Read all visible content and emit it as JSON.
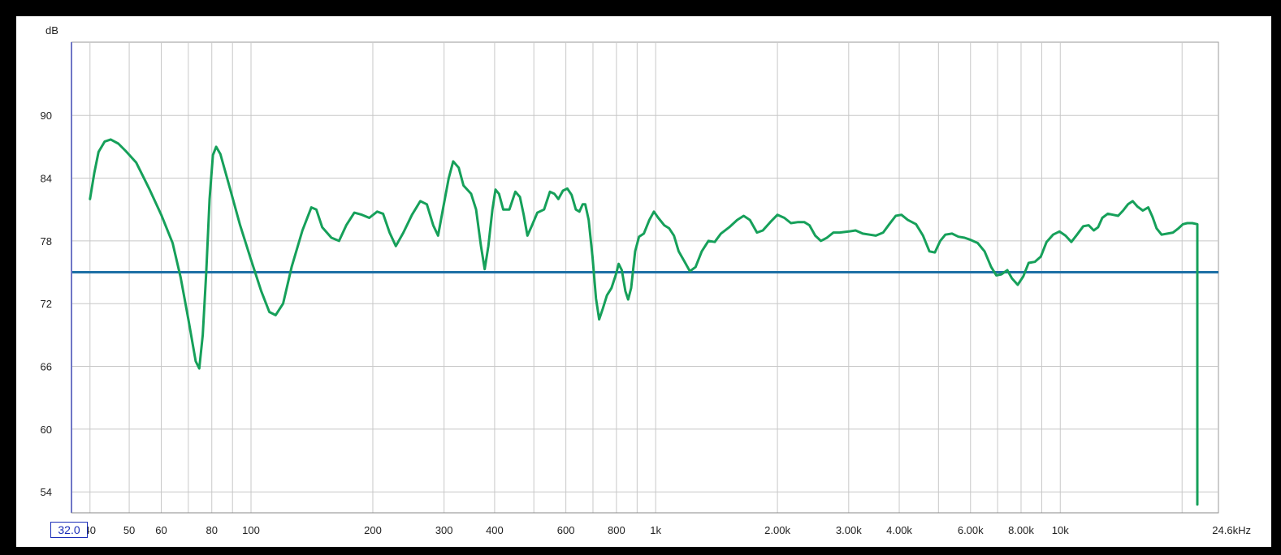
{
  "colors": {
    "response_curve": "#16a05a",
    "reference_line": "#1d6fa5",
    "left_axis": "#6f76c6",
    "grid": "#c8c8c8",
    "start_box_border": "#1a2db8"
  },
  "start_frequency_field": {
    "value": "32.0"
  },
  "chart_data": {
    "type": "line",
    "title": "",
    "xscale": "log",
    "xlim": [
      36,
      24600
    ],
    "ylim": [
      52,
      97
    ],
    "ylabel": "dB",
    "xunit": "kHz",
    "grid": true,
    "y_ticks": [
      {
        "value": 54,
        "label": "54"
      },
      {
        "value": 60,
        "label": "60"
      },
      {
        "value": 66,
        "label": "66"
      },
      {
        "value": 72,
        "label": "72"
      },
      {
        "value": 78,
        "label": "78"
      },
      {
        "value": 84,
        "label": "84"
      },
      {
        "value": 90,
        "label": "90"
      }
    ],
    "x_ticks": [
      {
        "value": 40,
        "label": "40"
      },
      {
        "value": 50,
        "label": "50"
      },
      {
        "value": 60,
        "label": "60"
      },
      {
        "value": 80,
        "label": "80"
      },
      {
        "value": 100,
        "label": "100"
      },
      {
        "value": 200,
        "label": "200"
      },
      {
        "value": 300,
        "label": "300"
      },
      {
        "value": 400,
        "label": "400"
      },
      {
        "value": 600,
        "label": "600"
      },
      {
        "value": 800,
        "label": "800"
      },
      {
        "value": 1000,
        "label": "1k"
      },
      {
        "value": 2000,
        "label": "2.00k"
      },
      {
        "value": 3000,
        "label": "3.00k"
      },
      {
        "value": 4000,
        "label": "4.00k"
      },
      {
        "value": 6000,
        "label": "6.00k"
      },
      {
        "value": 8000,
        "label": "8.00k"
      },
      {
        "value": 10000,
        "label": "10k"
      },
      {
        "value": 24600,
        "label": "24.6kHz"
      }
    ],
    "x_minor_grid": [
      70,
      90,
      500,
      700,
      900,
      5000,
      7000,
      9000,
      20000
    ],
    "reference_level": 75,
    "series": [
      {
        "points": [
          [
            40,
            82
          ],
          [
            41,
            84.5
          ],
          [
            42,
            86.5
          ],
          [
            43.5,
            87.5
          ],
          [
            45,
            87.7
          ],
          [
            47,
            87.3
          ],
          [
            49,
            86.6
          ],
          [
            52,
            85.5
          ],
          [
            56,
            83.0
          ],
          [
            60,
            80.5
          ],
          [
            64,
            77.8
          ],
          [
            67,
            74.5
          ],
          [
            70,
            70.5
          ],
          [
            73,
            66.5
          ],
          [
            74.5,
            65.8
          ],
          [
            76,
            69
          ],
          [
            77.5,
            75
          ],
          [
            79,
            82
          ],
          [
            80.5,
            86.2
          ],
          [
            82,
            87.0
          ],
          [
            84,
            86.3
          ],
          [
            88,
            83.5
          ],
          [
            94,
            79.5
          ],
          [
            100,
            76.2
          ],
          [
            106,
            73.2
          ],
          [
            111,
            71.2
          ],
          [
            115,
            70.9
          ],
          [
            120,
            72.0
          ],
          [
            126,
            75.5
          ],
          [
            134,
            79.0
          ],
          [
            141,
            81.2
          ],
          [
            145,
            81.0
          ],
          [
            150,
            79.3
          ],
          [
            158,
            78.3
          ],
          [
            165,
            78.0
          ],
          [
            172,
            79.5
          ],
          [
            180,
            80.7
          ],
          [
            188,
            80.5
          ],
          [
            196,
            80.2
          ],
          [
            205,
            80.8
          ],
          [
            212,
            80.6
          ],
          [
            220,
            78.8
          ],
          [
            228,
            77.5
          ],
          [
            238,
            78.8
          ],
          [
            250,
            80.5
          ],
          [
            262,
            81.8
          ],
          [
            272,
            81.5
          ],
          [
            282,
            79.5
          ],
          [
            290,
            78.5
          ],
          [
            298,
            81.0
          ],
          [
            308,
            84.0
          ],
          [
            316,
            85.6
          ],
          [
            326,
            85.0
          ],
          [
            335,
            83.3
          ],
          [
            350,
            82.5
          ],
          [
            360,
            81.0
          ],
          [
            370,
            77.5
          ],
          [
            378,
            75.3
          ],
          [
            386,
            77.5
          ],
          [
            395,
            81.0
          ],
          [
            402,
            82.9
          ],
          [
            410,
            82.5
          ],
          [
            420,
            81.0
          ],
          [
            435,
            81.0
          ],
          [
            450,
            82.7
          ],
          [
            462,
            82.2
          ],
          [
            472,
            80.5
          ],
          [
            482,
            78.5
          ],
          [
            495,
            79.5
          ],
          [
            510,
            80.7
          ],
          [
            530,
            81.0
          ],
          [
            548,
            82.7
          ],
          [
            562,
            82.5
          ],
          [
            575,
            82.0
          ],
          [
            590,
            82.8
          ],
          [
            605,
            83.0
          ],
          [
            620,
            82.4
          ],
          [
            635,
            81.0
          ],
          [
            648,
            80.8
          ],
          [
            660,
            81.5
          ],
          [
            670,
            81.5
          ],
          [
            683,
            80.0
          ],
          [
            698,
            76.5
          ],
          [
            712,
            72.5
          ],
          [
            725,
            70.5
          ],
          [
            740,
            71.5
          ],
          [
            758,
            72.8
          ],
          [
            778,
            73.5
          ],
          [
            798,
            74.8
          ],
          [
            810,
            75.8
          ],
          [
            825,
            75.2
          ],
          [
            842,
            73.2
          ],
          [
            855,
            72.4
          ],
          [
            870,
            73.5
          ],
          [
            890,
            77.0
          ],
          [
            910,
            78.4
          ],
          [
            935,
            78.7
          ],
          [
            965,
            80.0
          ],
          [
            990,
            80.8
          ],
          [
            1015,
            80.2
          ],
          [
            1050,
            79.5
          ],
          [
            1080,
            79.2
          ],
          [
            1110,
            78.5
          ],
          [
            1140,
            77.0
          ],
          [
            1180,
            76.0
          ],
          [
            1215,
            75.1
          ],
          [
            1255,
            75.5
          ],
          [
            1300,
            77.0
          ],
          [
            1350,
            78.0
          ],
          [
            1400,
            77.9
          ],
          [
            1450,
            78.7
          ],
          [
            1520,
            79.3
          ],
          [
            1590,
            80.0
          ],
          [
            1650,
            80.4
          ],
          [
            1710,
            80.0
          ],
          [
            1780,
            78.8
          ],
          [
            1840,
            79.0
          ],
          [
            1920,
            79.8
          ],
          [
            2000,
            80.5
          ],
          [
            2080,
            80.2
          ],
          [
            2160,
            79.7
          ],
          [
            2250,
            79.8
          ],
          [
            2330,
            79.8
          ],
          [
            2400,
            79.5
          ],
          [
            2480,
            78.5
          ],
          [
            2560,
            78.0
          ],
          [
            2650,
            78.3
          ],
          [
            2750,
            78.8
          ],
          [
            2850,
            78.8
          ],
          [
            3000,
            78.9
          ],
          [
            3120,
            79.0
          ],
          [
            3250,
            78.7
          ],
          [
            3380,
            78.6
          ],
          [
            3500,
            78.5
          ],
          [
            3650,
            78.8
          ],
          [
            3780,
            79.6
          ],
          [
            3920,
            80.4
          ],
          [
            4050,
            80.5
          ],
          [
            4200,
            80.0
          ],
          [
            4400,
            79.6
          ],
          [
            4580,
            78.5
          ],
          [
            4750,
            77.0
          ],
          [
            4900,
            76.9
          ],
          [
            5050,
            78.0
          ],
          [
            5200,
            78.6
          ],
          [
            5400,
            78.7
          ],
          [
            5600,
            78.4
          ],
          [
            5800,
            78.3
          ],
          [
            6000,
            78.1
          ],
          [
            6250,
            77.8
          ],
          [
            6500,
            77.0
          ],
          [
            6750,
            75.5
          ],
          [
            6950,
            74.7
          ],
          [
            7150,
            74.8
          ],
          [
            7400,
            75.2
          ],
          [
            7600,
            74.4
          ],
          [
            7850,
            73.8
          ],
          [
            8100,
            74.6
          ],
          [
            8350,
            75.9
          ],
          [
            8650,
            76.0
          ],
          [
            8950,
            76.5
          ],
          [
            9250,
            77.9
          ],
          [
            9600,
            78.6
          ],
          [
            9950,
            78.9
          ],
          [
            10300,
            78.5
          ],
          [
            10650,
            77.9
          ],
          [
            11000,
            78.6
          ],
          [
            11400,
            79.4
          ],
          [
            11750,
            79.5
          ],
          [
            12100,
            79.0
          ],
          [
            12400,
            79.3
          ],
          [
            12700,
            80.2
          ],
          [
            13100,
            80.6
          ],
          [
            13500,
            80.5
          ],
          [
            13900,
            80.4
          ],
          [
            14300,
            80.9
          ],
          [
            14700,
            81.5
          ],
          [
            15100,
            81.8
          ],
          [
            15500,
            81.3
          ],
          [
            16000,
            80.9
          ],
          [
            16500,
            81.2
          ],
          [
            16900,
            80.3
          ],
          [
            17300,
            79.2
          ],
          [
            17800,
            78.6
          ],
          [
            18400,
            78.7
          ],
          [
            19000,
            78.8
          ],
          [
            19600,
            79.2
          ],
          [
            20100,
            79.6
          ],
          [
            20600,
            79.7
          ],
          [
            21200,
            79.7
          ],
          [
            21900,
            79.6
          ],
          [
            22600,
            79.2
          ],
          [
            23300,
            78.8
          ],
          [
            24000,
            78.0
          ],
          [
            24600,
            76.8
          ],
          [
            25300,
            74.0
          ],
          [
            26000,
            70.5
          ],
          [
            26800,
            66.0
          ],
          [
            27600,
            61.8
          ],
          [
            28200,
            58.5
          ],
          [
            28700,
            55.0
          ],
          [
            29000,
            52.8
          ]
        ]
      }
    ]
  }
}
